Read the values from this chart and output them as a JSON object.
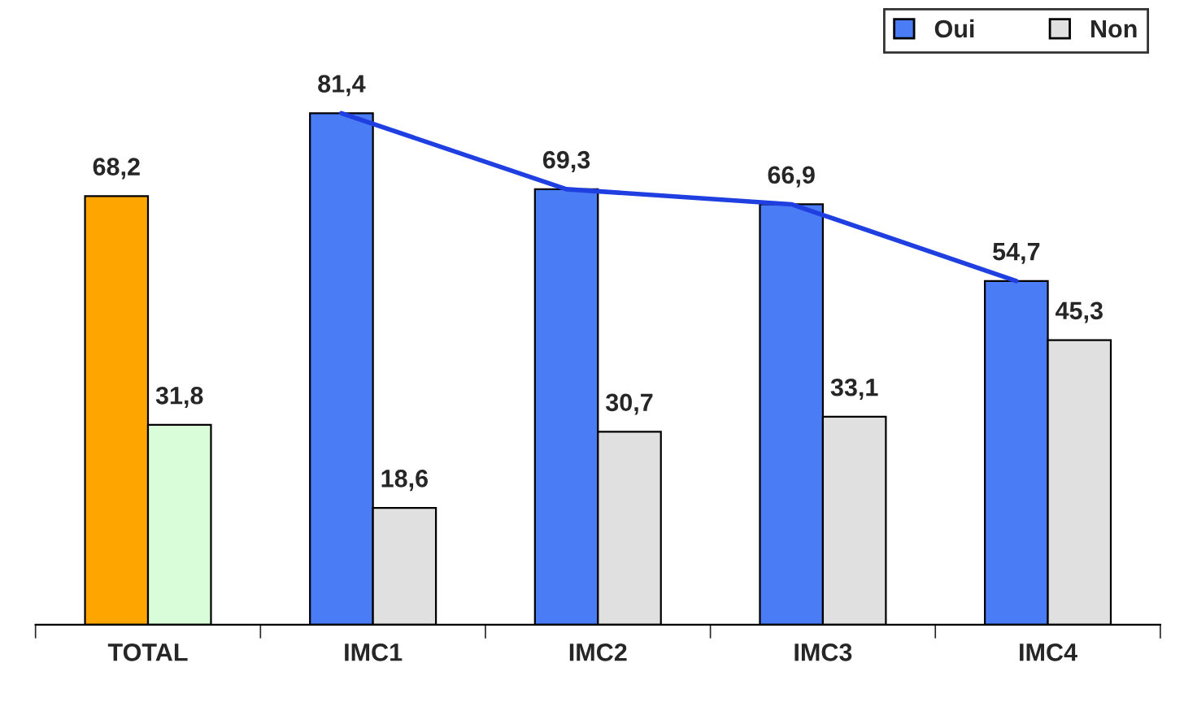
{
  "chart_data": {
    "type": "bar",
    "categories": [
      "TOTAL",
      "IMC1",
      "IMC2",
      "IMC3",
      "IMC4"
    ],
    "legend": "top right",
    "grid": false,
    "series": [
      {
        "name": "Oui",
        "color": "#4a7cf5",
        "colors": [
          "#ffa500",
          "#4a7cf5",
          "#4a7cf5",
          "#4a7cf5",
          "#4a7cf5"
        ],
        "values": [
          68.2,
          81.4,
          69.3,
          66.9,
          54.7
        ],
        "value_labels": [
          "68,2",
          "81,4",
          "69,3",
          "66,9",
          "54,7"
        ]
      },
      {
        "name": "Non",
        "color": "#e0e0e0",
        "colors": [
          "#d9fcd9",
          "#e0e0e0",
          "#e0e0e0",
          "#e0e0e0",
          "#e0e0e0"
        ],
        "values": [
          31.8,
          18.6,
          30.7,
          33.1,
          45.3
        ],
        "value_labels": [
          "31,8",
          "18,6",
          "30,7",
          "33,1",
          "45,3"
        ]
      },
      {
        "type": "line",
        "color": "#1f3fe0",
        "values": [
          null,
          81.4,
          69.3,
          66.9,
          54.7
        ],
        "marker": "none",
        "line_style": "solid"
      }
    ]
  }
}
